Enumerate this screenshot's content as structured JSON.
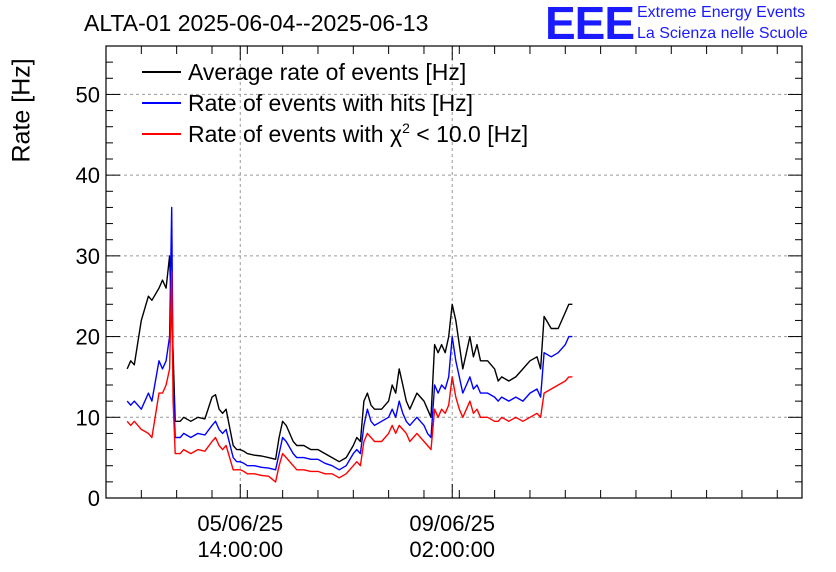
{
  "header": {
    "title": "ALTA-01 2025-06-04--2025-06-13",
    "logo_letters": "EEE",
    "logo_line1": "Extreme Energy Events",
    "logo_line2": "La Scienza nelle Scuole"
  },
  "colors": {
    "black_series": "#000000",
    "blue_series": "#0000ff",
    "red_series": "#ff0000",
    "logo": "#1a1aff"
  },
  "chart_data": {
    "type": "line",
    "ylabel": "Rate [Hz]",
    "ylim": [
      0,
      56
    ],
    "xlim": [
      0,
      9.85
    ],
    "grid": true,
    "legend_position": "top-left",
    "yticks": [
      0,
      10,
      20,
      30,
      40,
      50
    ],
    "xticks": [
      {
        "x": 1.9,
        "line1": "05/06/25",
        "line2": "14:00:00"
      },
      {
        "x": 4.9,
        "line1": "09/06/25",
        "line2": "02:00:00"
      }
    ],
    "legend": [
      {
        "text": "Average rate of events [Hz]",
        "series": 0
      },
      {
        "text": "Rate of events with hits [Hz]",
        "series": 1
      },
      {
        "text_prefix": "Rate of events with ",
        "chi": "χ",
        "sup": "2",
        "text_suffix": " < 10.0 [Hz]",
        "series": 2
      }
    ],
    "series": [
      {
        "color": "#000000",
        "x": [
          0.3,
          0.35,
          0.4,
          0.5,
          0.6,
          0.65,
          0.75,
          0.8,
          0.85,
          0.9,
          0.93,
          0.95,
          0.98,
          1.05,
          1.1,
          1.2,
          1.3,
          1.4,
          1.5,
          1.55,
          1.6,
          1.65,
          1.7,
          1.8,
          1.85,
          1.9,
          1.95,
          2.0,
          2.1,
          2.2,
          2.3,
          2.4,
          2.45,
          2.5,
          2.55,
          2.65,
          2.7,
          2.8,
          2.9,
          3.0,
          3.1,
          3.2,
          3.3,
          3.4,
          3.5,
          3.55,
          3.6,
          3.65,
          3.7,
          3.75,
          3.8,
          3.9,
          4.0,
          4.05,
          4.1,
          4.15,
          4.2,
          4.25,
          4.3,
          4.4,
          4.5,
          4.55,
          4.6,
          4.65,
          4.7,
          4.75,
          4.8,
          4.85,
          4.9,
          4.95,
          5.0,
          5.05,
          5.1,
          5.15,
          5.2,
          5.25,
          5.3,
          5.4,
          5.5,
          5.55,
          5.6,
          5.7,
          5.8,
          5.9,
          6.0,
          6.1,
          6.15,
          6.2,
          6.3,
          6.4,
          6.5,
          6.55,
          6.6
        ],
        "y": [
          16,
          17,
          16.5,
          22,
          25,
          24.5,
          26,
          27,
          26,
          30,
          22,
          18,
          9.5,
          9.5,
          10,
          9.5,
          10,
          9.8,
          12.5,
          12.8,
          11,
          10.5,
          11,
          6.5,
          6,
          6,
          5.8,
          5.5,
          5.3,
          5.2,
          5,
          4.8,
          7.5,
          9.5,
          9,
          7,
          6.5,
          6.5,
          6,
          6,
          5.5,
          5,
          4.5,
          5,
          6.5,
          7.5,
          7,
          12,
          13,
          11.5,
          11,
          11,
          12,
          14,
          13,
          16,
          14,
          12,
          11,
          13,
          12,
          11,
          10,
          19,
          18,
          19,
          18,
          20,
          24,
          22,
          19,
          16,
          18,
          20,
          17.5,
          19,
          17,
          17,
          16,
          14.5,
          15,
          14.5,
          15,
          16,
          17,
          17.5,
          16,
          22.5,
          21,
          21,
          23,
          24,
          24
        ]
      },
      {
        "color": "#0000ff",
        "x": [
          0.3,
          0.35,
          0.4,
          0.5,
          0.6,
          0.65,
          0.75,
          0.8,
          0.85,
          0.9,
          0.93,
          0.95,
          0.98,
          1.05,
          1.1,
          1.2,
          1.3,
          1.4,
          1.5,
          1.55,
          1.6,
          1.65,
          1.7,
          1.8,
          1.85,
          1.9,
          1.95,
          2.0,
          2.1,
          2.2,
          2.3,
          2.4,
          2.45,
          2.5,
          2.55,
          2.65,
          2.7,
          2.8,
          2.9,
          3.0,
          3.1,
          3.2,
          3.3,
          3.4,
          3.5,
          3.55,
          3.6,
          3.65,
          3.7,
          3.75,
          3.8,
          3.9,
          4.0,
          4.05,
          4.1,
          4.15,
          4.2,
          4.25,
          4.3,
          4.4,
          4.5,
          4.55,
          4.6,
          4.65,
          4.7,
          4.75,
          4.8,
          4.85,
          4.9,
          4.95,
          5.0,
          5.05,
          5.1,
          5.15,
          5.2,
          5.25,
          5.3,
          5.4,
          5.5,
          5.55,
          5.6,
          5.7,
          5.8,
          5.9,
          6.0,
          6.1,
          6.15,
          6.2,
          6.3,
          6.4,
          6.5,
          6.55,
          6.6
        ],
        "y": [
          12,
          11.5,
          12,
          11,
          13,
          12,
          17,
          16,
          17,
          20,
          36,
          15,
          7.5,
          7.5,
          8,
          7.5,
          8,
          7.8,
          9,
          9.5,
          8.5,
          8,
          8.5,
          5,
          4.5,
          4.5,
          4.3,
          4,
          4,
          3.8,
          3.7,
          3.5,
          5.5,
          7.5,
          7,
          5.5,
          5,
          5,
          4.8,
          4.8,
          4.3,
          4,
          3.5,
          4,
          5.5,
          6,
          5.5,
          9,
          11,
          9.5,
          9,
          9.5,
          10,
          11,
          10,
          12,
          10.5,
          9.5,
          9,
          10,
          9,
          8,
          7.5,
          14,
          13,
          14,
          13.5,
          15,
          20,
          17,
          15,
          13,
          14,
          15,
          13.5,
          14,
          13,
          13,
          12.5,
          12,
          12.5,
          12,
          12.5,
          12,
          13,
          13.5,
          12.5,
          18,
          17.5,
          18,
          19,
          20,
          20
        ]
      },
      {
        "color": "#ff0000",
        "x": [
          0.3,
          0.35,
          0.4,
          0.5,
          0.6,
          0.65,
          0.75,
          0.8,
          0.85,
          0.9,
          0.93,
          0.95,
          0.98,
          1.05,
          1.1,
          1.2,
          1.3,
          1.4,
          1.5,
          1.55,
          1.6,
          1.65,
          1.7,
          1.8,
          1.85,
          1.9,
          1.95,
          2.0,
          2.1,
          2.2,
          2.3,
          2.4,
          2.45,
          2.5,
          2.55,
          2.65,
          2.7,
          2.8,
          2.9,
          3.0,
          3.1,
          3.2,
          3.3,
          3.4,
          3.5,
          3.55,
          3.6,
          3.65,
          3.7,
          3.75,
          3.8,
          3.9,
          4.0,
          4.05,
          4.1,
          4.15,
          4.2,
          4.25,
          4.3,
          4.4,
          4.5,
          4.55,
          4.6,
          4.65,
          4.7,
          4.75,
          4.8,
          4.85,
          4.9,
          4.95,
          5.0,
          5.05,
          5.1,
          5.15,
          5.2,
          5.25,
          5.3,
          5.4,
          5.5,
          5.55,
          5.6,
          5.7,
          5.8,
          5.9,
          6.0,
          6.1,
          6.15,
          6.2,
          6.3,
          6.4,
          6.5,
          6.55,
          6.6
        ],
        "y": [
          9.5,
          9,
          9.5,
          8.5,
          8,
          7.5,
          13,
          13,
          14,
          16,
          28,
          12,
          5.5,
          5.5,
          6,
          5.5,
          6,
          5.8,
          7,
          7.5,
          6.5,
          6,
          6.5,
          3.5,
          3.5,
          3.5,
          3.3,
          3,
          3,
          2.8,
          2.7,
          2,
          4,
          5.5,
          5,
          4,
          3.5,
          3.5,
          3.3,
          3.3,
          3,
          3,
          2.5,
          3,
          4,
          4.5,
          4,
          7,
          8,
          7.5,
          7,
          7,
          8,
          9,
          8,
          9,
          8.5,
          8,
          7,
          8,
          7,
          6.5,
          6,
          11,
          10,
          11,
          10.5,
          11.5,
          15,
          12.5,
          11,
          10,
          11,
          12,
          10.5,
          11,
          10,
          10,
          9.5,
          9.5,
          10,
          9.5,
          10,
          9.5,
          10,
          10.5,
          10,
          13,
          13.5,
          14,
          14.5,
          15,
          15
        ]
      }
    ]
  }
}
